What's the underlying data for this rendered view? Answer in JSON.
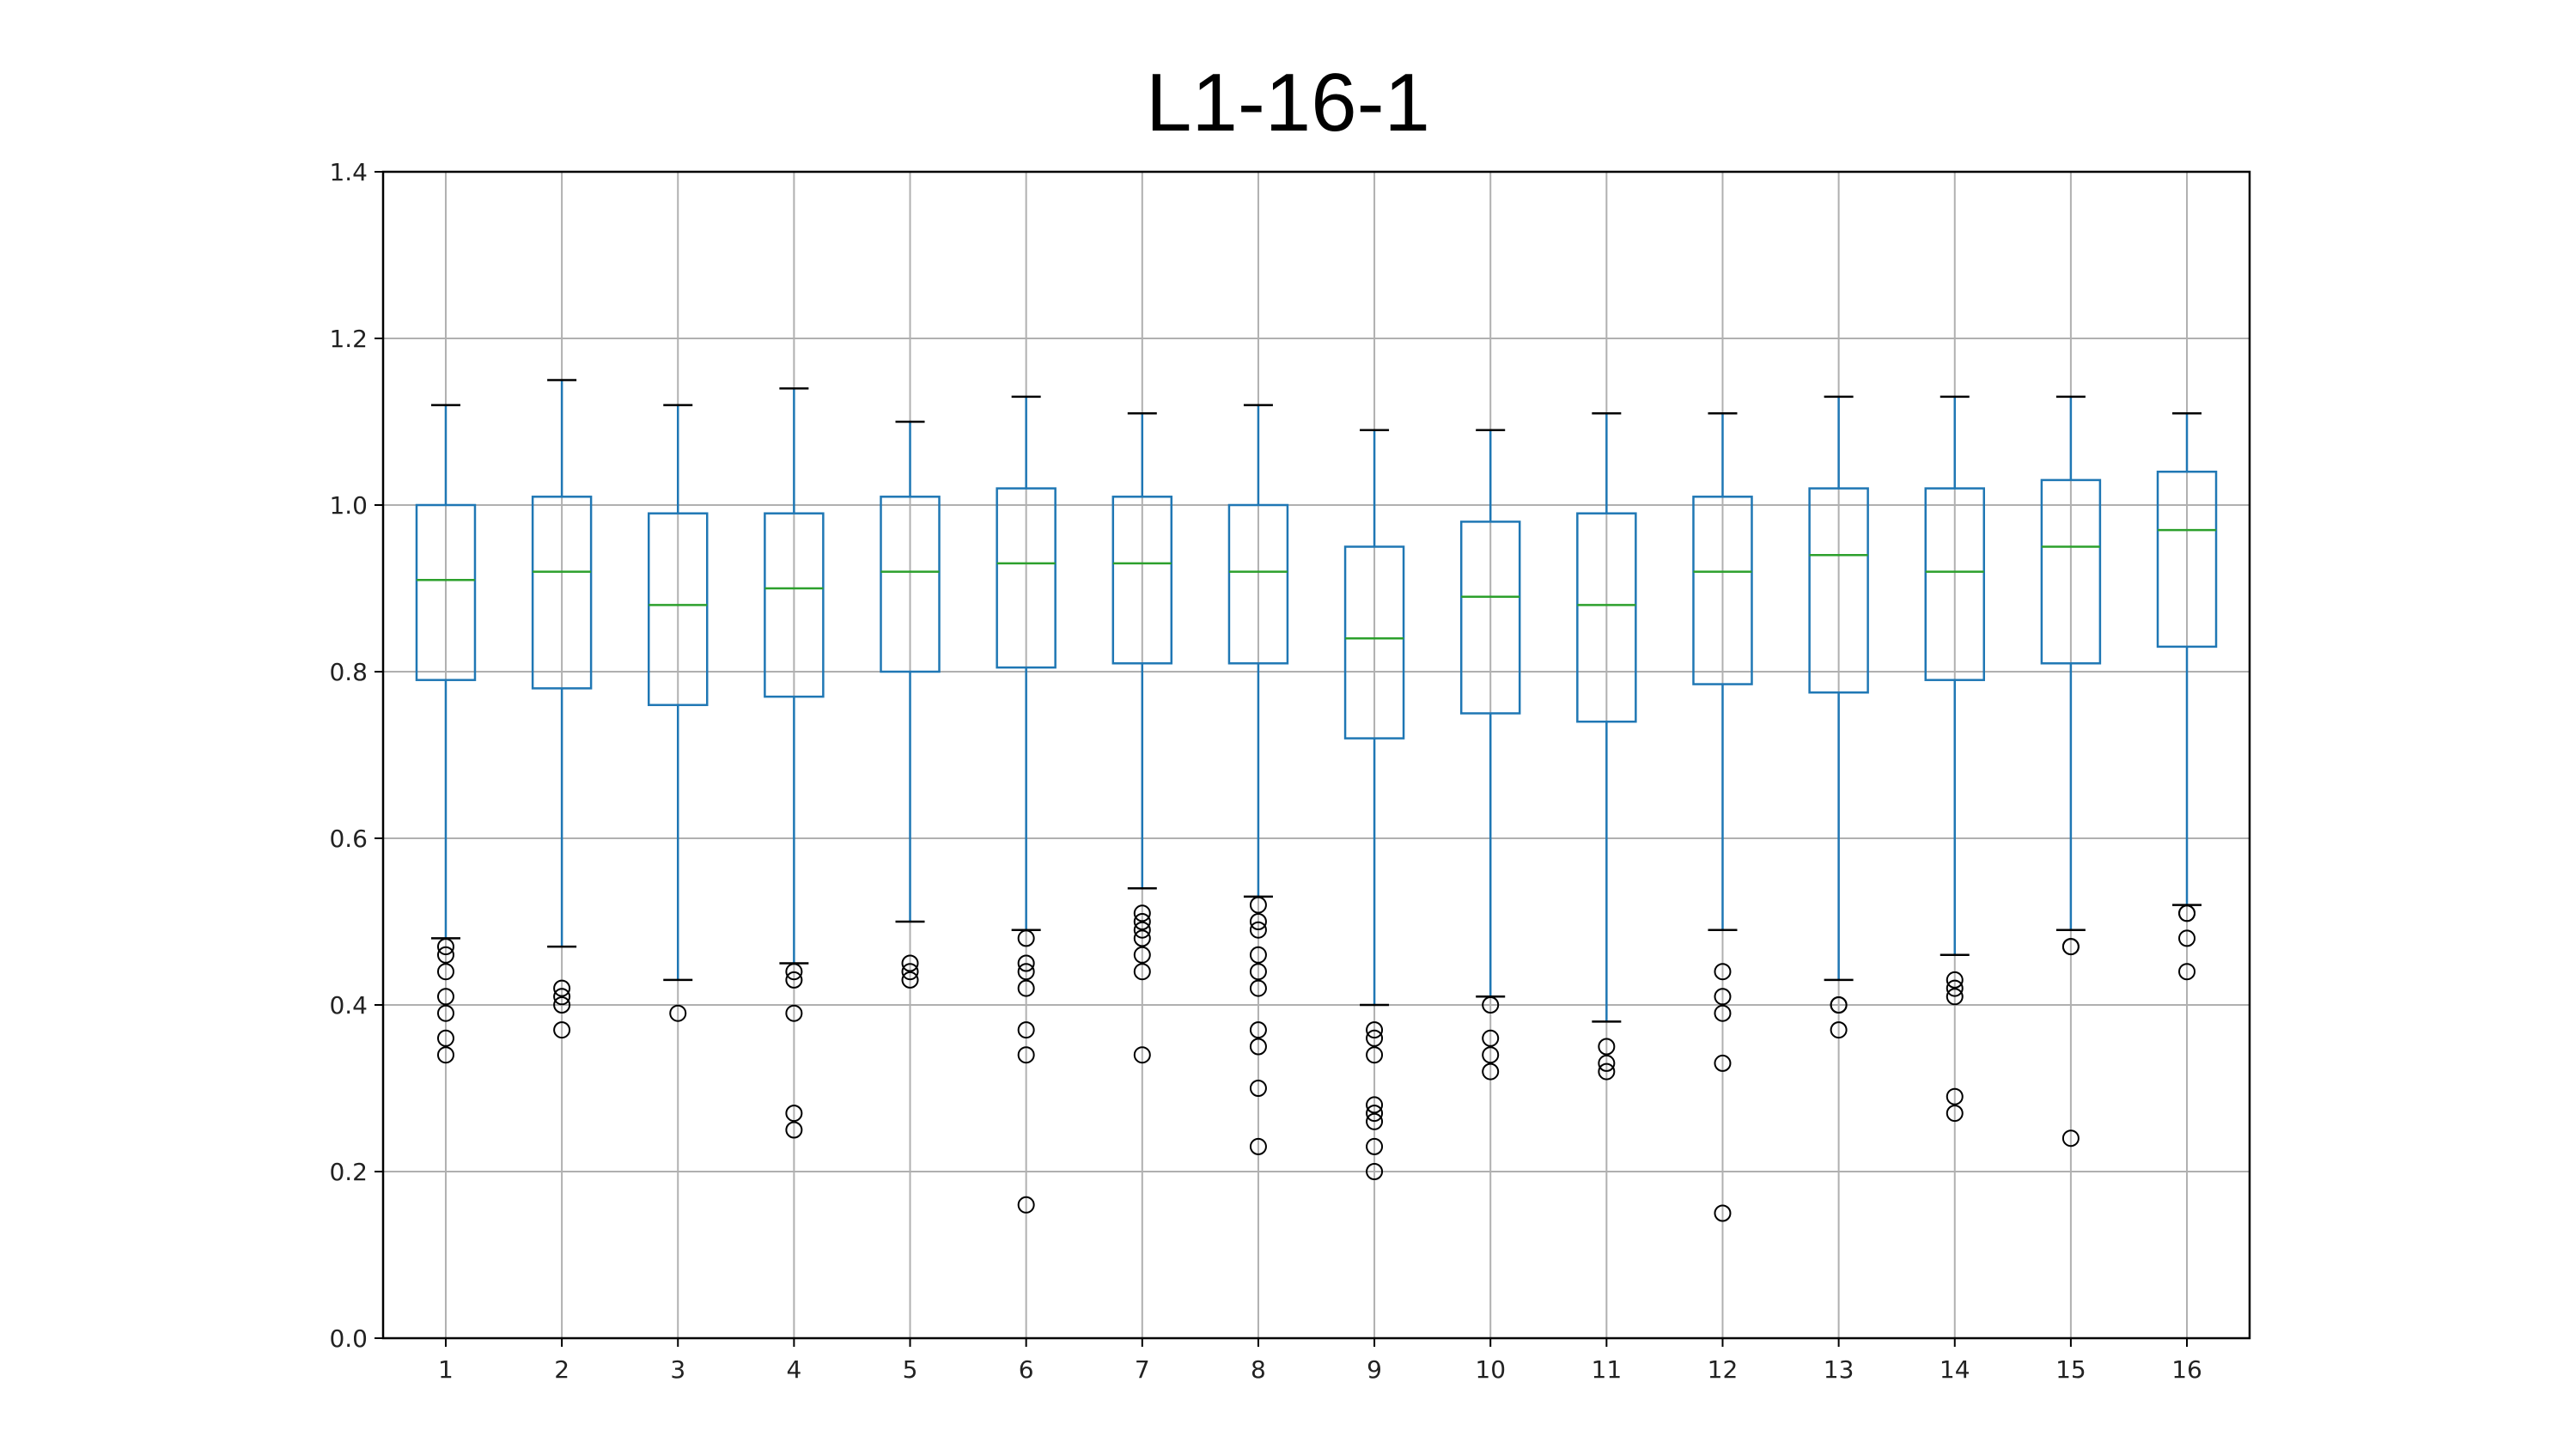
{
  "chart_data": {
    "type": "box",
    "title": "L1-16-1",
    "xlabel": "",
    "ylabel": "",
    "ylim": [
      0.0,
      1.4
    ],
    "yticks": [
      "0.0",
      "0.2",
      "0.4",
      "0.6",
      "0.8",
      "1.0",
      "1.2",
      "1.4"
    ],
    "categories": [
      "1",
      "2",
      "3",
      "4",
      "5",
      "6",
      "7",
      "8",
      "9",
      "10",
      "11",
      "12",
      "13",
      "14",
      "15",
      "16"
    ],
    "grid": true,
    "colors": {
      "box": "#1f77b4",
      "median": "#2ca02c",
      "cap": "#000000",
      "flier": "#000000",
      "grid": "#b0b0b0"
    },
    "boxes": [
      {
        "whisker_low": 0.48,
        "q1": 0.79,
        "median": 0.91,
        "q3": 1.0,
        "whisker_high": 1.12,
        "fliers": [
          0.46,
          0.47,
          0.44,
          0.41,
          0.39,
          0.36,
          0.34
        ]
      },
      {
        "whisker_low": 0.47,
        "q1": 0.78,
        "median": 0.92,
        "q3": 1.01,
        "whisker_high": 1.15,
        "fliers": [
          0.42,
          0.41,
          0.4,
          0.37
        ]
      },
      {
        "whisker_low": 0.43,
        "q1": 0.76,
        "median": 0.88,
        "q3": 0.99,
        "whisker_high": 1.12,
        "fliers": [
          0.39
        ]
      },
      {
        "whisker_low": 0.45,
        "q1": 0.77,
        "median": 0.9,
        "q3": 0.99,
        "whisker_high": 1.14,
        "fliers": [
          0.44,
          0.43,
          0.39,
          0.27,
          0.25
        ]
      },
      {
        "whisker_low": 0.5,
        "q1": 0.8,
        "median": 0.92,
        "q3": 1.01,
        "whisker_high": 1.1,
        "fliers": [
          0.45,
          0.44,
          0.43
        ]
      },
      {
        "whisker_low": 0.49,
        "q1": 0.805,
        "median": 0.93,
        "q3": 1.02,
        "whisker_high": 1.13,
        "fliers": [
          0.48,
          0.45,
          0.44,
          0.42,
          0.37,
          0.34,
          0.16
        ]
      },
      {
        "whisker_low": 0.54,
        "q1": 0.81,
        "median": 0.93,
        "q3": 1.01,
        "whisker_high": 1.11,
        "fliers": [
          0.51,
          0.5,
          0.49,
          0.48,
          0.46,
          0.44,
          0.34
        ]
      },
      {
        "whisker_low": 0.53,
        "q1": 0.81,
        "median": 0.92,
        "q3": 1.0,
        "whisker_high": 1.12,
        "fliers": [
          0.52,
          0.5,
          0.49,
          0.46,
          0.44,
          0.42,
          0.37,
          0.35,
          0.3,
          0.23
        ]
      },
      {
        "whisker_low": 0.4,
        "q1": 0.72,
        "median": 0.84,
        "q3": 0.95,
        "whisker_high": 1.09,
        "fliers": [
          0.37,
          0.36,
          0.34,
          0.28,
          0.27,
          0.26,
          0.23,
          0.2
        ]
      },
      {
        "whisker_low": 0.41,
        "q1": 0.75,
        "median": 0.89,
        "q3": 0.98,
        "whisker_high": 1.09,
        "fliers": [
          0.4,
          0.36,
          0.34,
          0.32
        ]
      },
      {
        "whisker_low": 0.38,
        "q1": 0.74,
        "median": 0.88,
        "q3": 0.99,
        "whisker_high": 1.11,
        "fliers": [
          0.35,
          0.33,
          0.32
        ]
      },
      {
        "whisker_low": 0.49,
        "q1": 0.785,
        "median": 0.92,
        "q3": 1.01,
        "whisker_high": 1.11,
        "fliers": [
          0.44,
          0.41,
          0.39,
          0.33,
          0.15
        ]
      },
      {
        "whisker_low": 0.43,
        "q1": 0.775,
        "median": 0.94,
        "q3": 1.02,
        "whisker_high": 1.13,
        "fliers": [
          0.4,
          0.4,
          0.37
        ]
      },
      {
        "whisker_low": 0.46,
        "q1": 0.79,
        "median": 0.92,
        "q3": 1.02,
        "whisker_high": 1.13,
        "fliers": [
          0.43,
          0.42,
          0.41,
          0.29,
          0.27
        ]
      },
      {
        "whisker_low": 0.49,
        "q1": 0.81,
        "median": 0.95,
        "q3": 1.03,
        "whisker_high": 1.13,
        "fliers": [
          0.47,
          0.47,
          0.24
        ]
      },
      {
        "whisker_low": 0.52,
        "q1": 0.83,
        "median": 0.97,
        "q3": 1.04,
        "whisker_high": 1.11,
        "fliers": [
          0.51,
          0.51,
          0.48,
          0.44
        ]
      }
    ]
  }
}
